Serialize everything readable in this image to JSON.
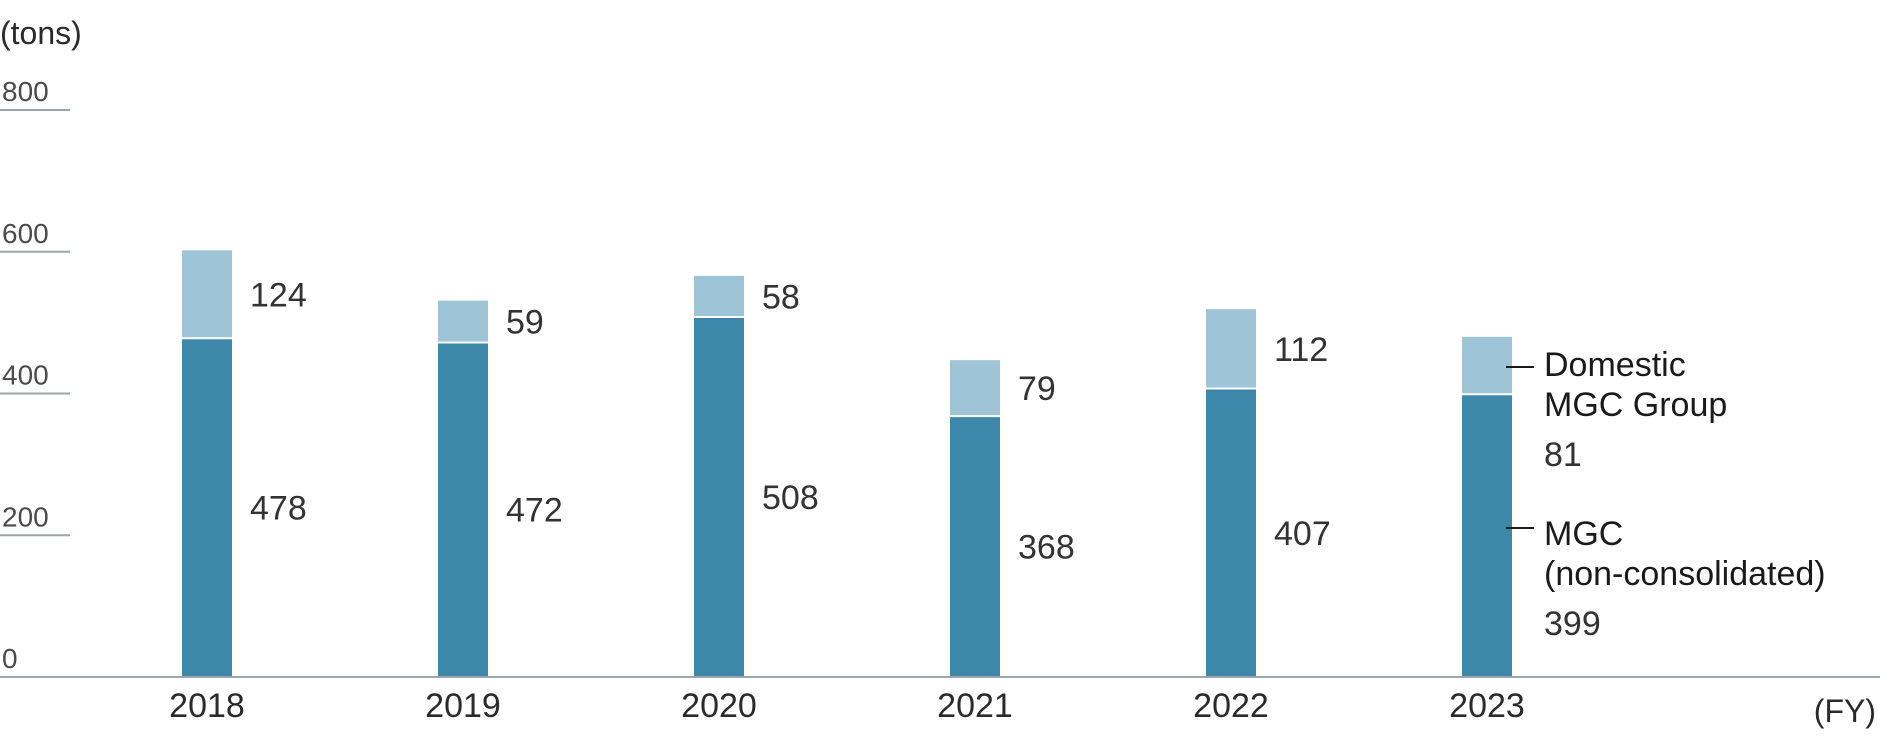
{
  "chart_data": {
    "type": "bar",
    "stacked": true,
    "categories": [
      "2018",
      "2019",
      "2020",
      "2021",
      "2022",
      "2023"
    ],
    "series": [
      {
        "name": "MGC (non-consolidated)",
        "values": [
          478,
          472,
          508,
          368,
          407,
          399
        ],
        "color": "#3d87ab"
      },
      {
        "name": "Domestic MGC Group",
        "values": [
          124,
          59,
          58,
          79,
          112,
          81
        ],
        "color": "#9ec4d7"
      }
    ],
    "ylim": [
      0,
      800
    ],
    "yticks": [
      0,
      200,
      400,
      600,
      800
    ],
    "y_unit": "(tons)",
    "x_unit": "(FY)",
    "legend": {
      "placement": "right",
      "group_lines": [
        "Domestic",
        "MGC Group"
      ],
      "group_value": "81",
      "mgc_lines": [
        "MGC",
        "(non-consolidated)"
      ],
      "mgc_value": "399"
    }
  }
}
